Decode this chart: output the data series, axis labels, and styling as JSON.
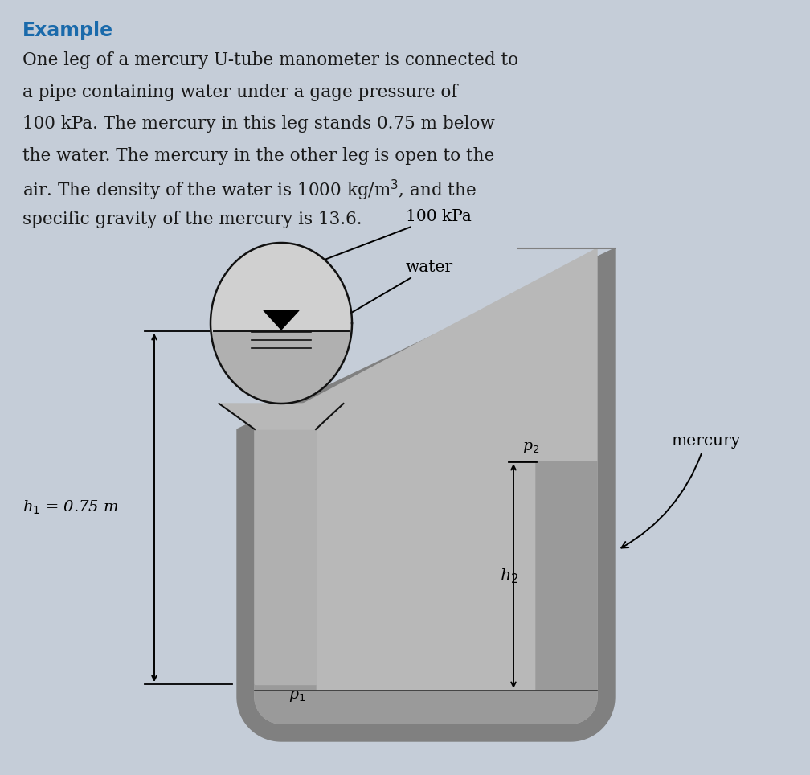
{
  "background_color": "#c5cdd8",
  "title_text": "Example",
  "title_color": "#1a6aab",
  "title_fontsize": 17,
  "body_lines": [
    "One leg of a mercury U-tube manometer is connected to",
    "a pipe containing water under a gage pressure of",
    "100 kPa. The mercury in this leg stands 0.75 m below",
    "the water. The mercury in the other leg is open to the",
    "air. The density of the water is 1000 kg/m$^3$, and the",
    "specific gravity of the mercury is 13.6."
  ],
  "body_fontsize": 15.5,
  "body_color": "#1a1a1a",
  "label_100kpa": "100 kPa",
  "label_water": "water",
  "label_mercury": "mercury",
  "label_h1": "h$_1$ = 0.75 m",
  "label_h2": "h$_2$",
  "label_p1": "p$_1$",
  "label_p2": "p$_2$",
  "tube_wall_color": "#808080",
  "tube_inner_color": "#b8b8b8",
  "mercury_color": "#9a9a9a",
  "bulb_upper_color": "#d0d0d0",
  "bulb_lower_color": "#b0b0b0",
  "line_color": "#111111",
  "neck_color": "#b8b8b8"
}
